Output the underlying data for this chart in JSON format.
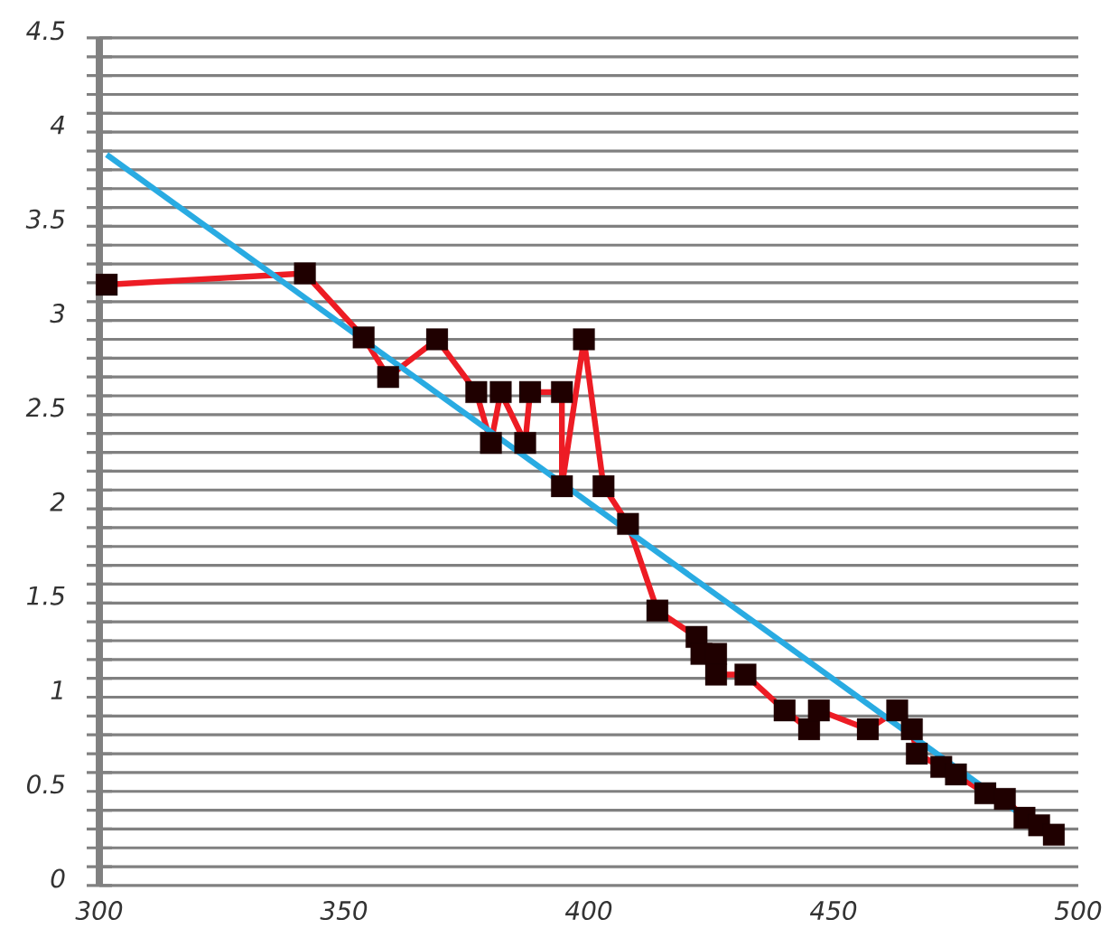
{
  "chart_data": {
    "type": "line",
    "xlim": [
      300,
      500
    ],
    "ylim": [
      0,
      4.5
    ],
    "xticks": [
      300,
      350,
      400,
      450,
      500
    ],
    "yticks": [
      0,
      0.5,
      1,
      1.5,
      2,
      2.5,
      3,
      3.5,
      4,
      4.5
    ],
    "grid": "y",
    "series": [
      {
        "color": "#ed1c24",
        "marker": "square",
        "x": [
          301.5,
          342,
          354,
          359,
          369,
          377,
          380,
          382,
          387,
          388,
          394.5,
          394.5,
          399,
          403,
          408,
          414,
          422,
          423,
          426,
          426,
          432,
          440,
          445,
          447,
          457,
          463,
          466,
          467,
          472,
          475,
          481,
          485,
          489,
          492,
          495
        ],
        "values": [
          3.19,
          3.25,
          2.91,
          2.7,
          2.9,
          2.62,
          2.35,
          2.62,
          2.35,
          2.62,
          2.62,
          2.12,
          2.9,
          2.12,
          1.92,
          1.46,
          1.32,
          1.23,
          1.23,
          1.12,
          1.12,
          0.93,
          0.83,
          0.93,
          0.83,
          0.93,
          0.83,
          0.7,
          0.63,
          0.59,
          0.49,
          0.46,
          0.36,
          0.32,
          0.27
        ]
      },
      {
        "color": "#29abe2",
        "marker": "none",
        "x": [
          301.5,
          494
        ],
        "values": [
          3.88,
          0.27
        ]
      }
    ]
  }
}
